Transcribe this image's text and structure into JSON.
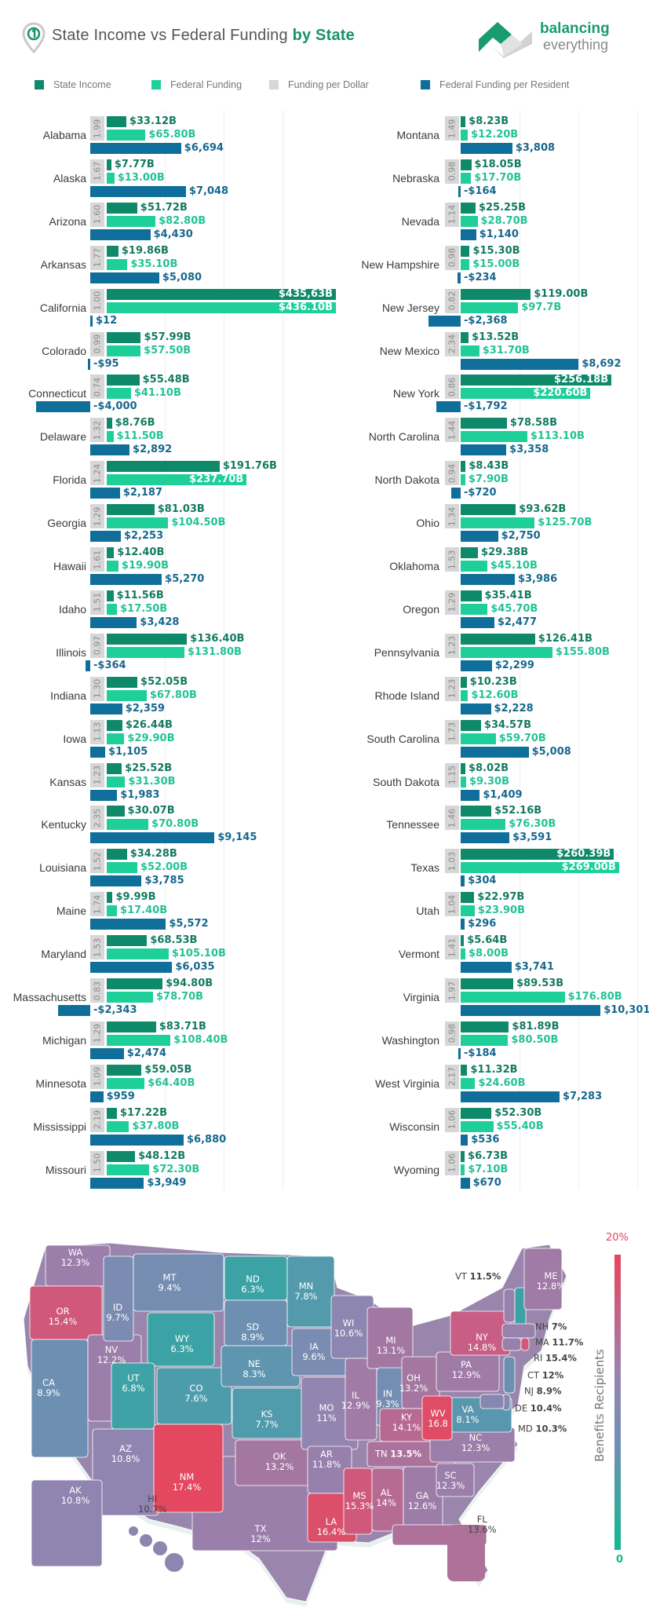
{
  "header": {
    "title_main": "State Income vs Federal Funding ",
    "title_bold": "by State",
    "brand_line1": "balancing",
    "brand_line2": "everything"
  },
  "legend": [
    {
      "label": "State Income",
      "color": "#0e8a6a"
    },
    {
      "label": "Federal Funding",
      "color": "#1ecf9a"
    },
    {
      "label": "Funding per Dollar",
      "color": "#d7d7d7"
    },
    {
      "label": "Federal Funding per Resident",
      "color": "#0f6f9a"
    }
  ],
  "chart_data": {
    "type": "bar",
    "orientation": "horizontal",
    "series_names": [
      "State Income",
      "Federal Funding",
      "Funding per Dollar",
      "Federal Funding per Resident"
    ],
    "units": {
      "income": "billion USD",
      "federal": "billion USD",
      "per_resident": "USD"
    },
    "columns": [
      [
        {
          "state": "Alabama",
          "ratio": "1.99",
          "income": 33.12,
          "federal": 65.8,
          "per_resident": 6694
        },
        {
          "state": "Alaska",
          "ratio": "1.67",
          "income": 7.77,
          "federal": 13.0,
          "per_resident": 7048
        },
        {
          "state": "Arizona",
          "ratio": "1.60",
          "income": 51.72,
          "federal": 82.8,
          "per_resident": 4430
        },
        {
          "state": "Arkansas",
          "ratio": "1.77",
          "income": 19.86,
          "federal": 35.1,
          "per_resident": 5080
        },
        {
          "state": "California",
          "ratio": "1.00",
          "income": 435.63,
          "income_label": "$435,63B",
          "federal": 436.1,
          "per_resident": 12
        },
        {
          "state": "Colorado",
          "ratio": "0.99",
          "income": 57.99,
          "federal": 57.5,
          "per_resident": -95
        },
        {
          "state": "Connecticut",
          "ratio": "0.74",
          "income": 55.48,
          "federal": 41.1,
          "per_resident": -4000
        },
        {
          "state": "Delaware",
          "ratio": "1.32",
          "income": 8.76,
          "federal": 11.5,
          "per_resident": 2892
        },
        {
          "state": "Florida",
          "ratio": "1.24",
          "income": 191.76,
          "federal": 237.7,
          "per_resident": 2187
        },
        {
          "state": "Georgia",
          "ratio": "1.29",
          "income": 81.03,
          "federal": 104.5,
          "per_resident": 2253
        },
        {
          "state": "Hawaii",
          "ratio": "1.61",
          "income": 12.4,
          "federal": 19.9,
          "per_resident": 5270
        },
        {
          "state": "Idaho",
          "ratio": "1.51",
          "income": 11.56,
          "federal": 17.5,
          "per_resident": 3428
        },
        {
          "state": "Illinois",
          "ratio": "0.97",
          "income": 136.4,
          "federal": 131.8,
          "per_resident": -364
        },
        {
          "state": "Indiana",
          "ratio": "1.30",
          "income": 52.05,
          "federal": 67.8,
          "per_resident": 2359
        },
        {
          "state": "Iowa",
          "ratio": "1.13",
          "income": 26.44,
          "federal": 29.9,
          "per_resident": 1105
        },
        {
          "state": "Kansas",
          "ratio": "1.23",
          "income": 25.52,
          "federal": 31.3,
          "per_resident": 1983
        },
        {
          "state": "Kentucky",
          "ratio": "2.35",
          "income": 30.07,
          "federal": 70.8,
          "per_resident": 9145
        },
        {
          "state": "Louisiana",
          "ratio": "1.52",
          "income": 34.28,
          "federal": 52.0,
          "per_resident": 3785
        },
        {
          "state": "Maine",
          "ratio": "1.74",
          "income": 9.99,
          "federal": 17.4,
          "per_resident": 5572
        },
        {
          "state": "Maryland",
          "ratio": "1.53",
          "income": 68.53,
          "federal": 105.1,
          "per_resident": 6035
        },
        {
          "state": "Massachusetts",
          "ratio": "0.83",
          "income": 94.8,
          "federal": 78.7,
          "per_resident": -2343
        },
        {
          "state": "Michigan",
          "ratio": "1.29",
          "income": 83.71,
          "federal": 108.4,
          "per_resident": 2474
        },
        {
          "state": "Minnesota",
          "ratio": "1.09",
          "income": 59.05,
          "federal": 64.4,
          "per_resident": 959
        },
        {
          "state": "Mississippi",
          "ratio": "2.19",
          "income": 17.22,
          "federal": 37.8,
          "per_resident": 6880
        },
        {
          "state": "Missouri",
          "ratio": "1.50",
          "income": 48.12,
          "federal": 72.3,
          "per_resident": 3949
        }
      ],
      [
        {
          "state": "Montana",
          "ratio": "1.49",
          "income": 8.23,
          "federal": 12.2,
          "per_resident": 3808
        },
        {
          "state": "Nebraska",
          "ratio": "0.98",
          "income": 18.05,
          "federal": 17.7,
          "per_resident": -164
        },
        {
          "state": "Nevada",
          "ratio": "1.14",
          "income": 25.25,
          "federal": 28.7,
          "per_resident": 1140
        },
        {
          "state": "New Hampshire",
          "ratio": "0.98",
          "income": 15.3,
          "federal": 15.0,
          "per_resident": -234
        },
        {
          "state": "New Jersey",
          "ratio": "0.82",
          "income": 119.0,
          "federal": 97.7,
          "federal_label": "$97.7B",
          "per_resident": -2368
        },
        {
          "state": "New Mexico",
          "ratio": "2.34",
          "income": 13.52,
          "federal": 31.7,
          "per_resident": 8692
        },
        {
          "state": "New York",
          "ratio": "0.86",
          "income": 256.18,
          "federal": 220.6,
          "per_resident": -1792
        },
        {
          "state": "North Carolina",
          "ratio": "1.44",
          "income": 78.58,
          "federal": 113.1,
          "per_resident": 3358
        },
        {
          "state": "North Dakota",
          "ratio": "0.94",
          "income": 8.43,
          "federal": 7.9,
          "per_resident": -720
        },
        {
          "state": "Ohio",
          "ratio": "1.34",
          "income": 93.62,
          "federal": 125.7,
          "per_resident": 2750
        },
        {
          "state": "Oklahoma",
          "ratio": "1.53",
          "income": 29.38,
          "federal": 45.1,
          "per_resident": 3986
        },
        {
          "state": "Oregon",
          "ratio": "1.29",
          "income": 35.41,
          "federal": 45.7,
          "per_resident": 2477
        },
        {
          "state": "Pennsylvania",
          "ratio": "1.23",
          "income": 126.41,
          "federal": 155.8,
          "per_resident": 2299
        },
        {
          "state": "Rhode Island",
          "ratio": "1.23",
          "income": 10.23,
          "federal": 12.6,
          "per_resident": 2228
        },
        {
          "state": "South Carolina",
          "ratio": "1.73",
          "income": 34.57,
          "federal": 59.7,
          "per_resident": 5008
        },
        {
          "state": "South Dakota",
          "ratio": "1.15",
          "income": 8.02,
          "federal": 9.3,
          "per_resident": 1409
        },
        {
          "state": "Tennessee",
          "ratio": "1.46",
          "income": 52.16,
          "federal": 76.3,
          "per_resident": 3591
        },
        {
          "state": "Texas",
          "ratio": "1.03",
          "income": 260.39,
          "federal": 269.0,
          "per_resident": 304
        },
        {
          "state": "Utah",
          "ratio": "1.04",
          "income": 22.97,
          "federal": 23.9,
          "per_resident": 296
        },
        {
          "state": "Vermont",
          "ratio": "1.41",
          "income": 5.64,
          "federal": 8.0,
          "per_resident": 3741
        },
        {
          "state": "Virginia",
          "ratio": "1.97",
          "income": 89.53,
          "federal": 176.8,
          "per_resident": 10301
        },
        {
          "state": "Washington",
          "ratio": "0.98",
          "income": 81.89,
          "federal": 80.5,
          "per_resident": -184
        },
        {
          "state": "West Virginia",
          "ratio": "2.17",
          "income": 11.32,
          "federal": 24.6,
          "per_resident": 7283
        },
        {
          "state": "Wisconsin",
          "ratio": "1.06",
          "income": 52.3,
          "federal": 55.4,
          "per_resident": 536
        },
        {
          "state": "Wyoming",
          "ratio": "1.06",
          "income": 6.73,
          "federal": 7.1,
          "per_resident": 670
        }
      ]
    ]
  },
  "map": {
    "legend_title": "Benefits Recipients",
    "legend_max": "20%",
    "legend_min": "0",
    "scale_colors": [
      "#12b98e",
      "#6f8fb3",
      "#9a84ae",
      "#e8445d"
    ],
    "states": [
      {
        "abbr": "WA",
        "value": "12.3%"
      },
      {
        "abbr": "OR",
        "value": "15.4%"
      },
      {
        "abbr": "CA",
        "value": "8.9%"
      },
      {
        "abbr": "NV",
        "value": "12.2%"
      },
      {
        "abbr": "ID",
        "value": "9.7%"
      },
      {
        "abbr": "MT",
        "value": "9.4%"
      },
      {
        "abbr": "WY",
        "value": "6.3%"
      },
      {
        "abbr": "UT",
        "value": "6.8%"
      },
      {
        "abbr": "CO",
        "value": "7.6%"
      },
      {
        "abbr": "AZ",
        "value": "10.8%"
      },
      {
        "abbr": "TX",
        "value": "12%"
      },
      {
        "abbr": "NM",
        "value": "17.4%"
      },
      {
        "abbr": "ND",
        "value": "6.3%"
      },
      {
        "abbr": "SD",
        "value": "8.9%"
      },
      {
        "abbr": "NE",
        "value": "8.3%"
      },
      {
        "abbr": "KS",
        "value": "7.7%"
      },
      {
        "abbr": "OK",
        "value": "13.2%"
      },
      {
        "abbr": "MN",
        "value": "7.8%"
      },
      {
        "abbr": "IA",
        "value": "9.6%"
      },
      {
        "abbr": "MO",
        "value": "11%"
      },
      {
        "abbr": "AR",
        "value": "11.8%"
      },
      {
        "abbr": "LA",
        "value": "16.4%"
      },
      {
        "abbr": "WI",
        "value": "10.6%"
      },
      {
        "abbr": "IL",
        "value": "12.9%"
      },
      {
        "abbr": "MI",
        "value": "13.1%"
      },
      {
        "abbr": "IN",
        "value": "9.3%"
      },
      {
        "abbr": "OH",
        "value": "13.2%"
      },
      {
        "abbr": "KY",
        "value": "14.1%"
      },
      {
        "abbr": "TN",
        "value": "13.5%"
      },
      {
        "abbr": "MS",
        "value": "15.3%"
      },
      {
        "abbr": "AL",
        "value": "14%"
      },
      {
        "abbr": "GA",
        "value": "12.6%"
      },
      {
        "abbr": "FL",
        "value": "13.6%"
      },
      {
        "abbr": "SC",
        "value": "12.3%"
      },
      {
        "abbr": "NC",
        "value": "12.3%"
      },
      {
        "abbr": "VA",
        "value": "8.1%"
      },
      {
        "abbr": "WV",
        "value": "16.8"
      },
      {
        "abbr": "PA",
        "value": "12.9%"
      },
      {
        "abbr": "NY",
        "value": "14.8%"
      },
      {
        "abbr": "VT",
        "value": "11.5%"
      },
      {
        "abbr": "ME",
        "value": "12.8%"
      },
      {
        "abbr": "NH",
        "value": "7%"
      },
      {
        "abbr": "MA",
        "value": "11.7%"
      },
      {
        "abbr": "RI",
        "value": "15.4%"
      },
      {
        "abbr": "CT",
        "value": "12%"
      },
      {
        "abbr": "NJ",
        "value": "8.9%"
      },
      {
        "abbr": "DE",
        "value": "10.4%"
      },
      {
        "abbr": "MD",
        "value": "10.3%"
      },
      {
        "abbr": "AK",
        "value": "10.8%"
      },
      {
        "abbr": "HI",
        "value": "10.7%"
      }
    ]
  }
}
